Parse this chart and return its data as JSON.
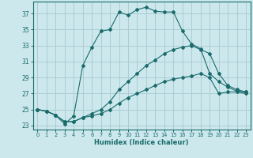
{
  "xlabel": "Humidex (Indice chaleur)",
  "bg_color": "#cce8ed",
  "grid_color": "#aacdd4",
  "line_color": "#1a6b6b",
  "xlim": [
    -0.5,
    23.5
  ],
  "ylim": [
    22.5,
    38.5
  ],
  "xticks": [
    0,
    1,
    2,
    3,
    4,
    5,
    6,
    7,
    8,
    9,
    10,
    11,
    12,
    13,
    14,
    15,
    16,
    17,
    18,
    19,
    20,
    21,
    22,
    23
  ],
  "yticks": [
    23,
    25,
    27,
    29,
    31,
    33,
    35,
    37
  ],
  "lines": [
    {
      "x": [
        0,
        1,
        2,
        3,
        4,
        5,
        6,
        7,
        8,
        9,
        10,
        11,
        12,
        13,
        14,
        15,
        16,
        17,
        18,
        19,
        20,
        21,
        22,
        23
      ],
      "y": [
        25.0,
        24.8,
        24.3,
        23.2,
        24.2,
        30.5,
        32.8,
        34.8,
        35.0,
        37.2,
        36.8,
        37.5,
        37.8,
        37.3,
        37.2,
        37.2,
        34.8,
        33.2,
        32.6,
        29.5,
        28.5,
        27.8,
        27.3,
        27.2
      ]
    },
    {
      "x": [
        0,
        1,
        2,
        3,
        4,
        5,
        6,
        7,
        8,
        9,
        10,
        11,
        12,
        13,
        14,
        15,
        16,
        17,
        18,
        19,
        20,
        21,
        22,
        23
      ],
      "y": [
        25.0,
        24.8,
        24.3,
        23.5,
        23.5,
        24.0,
        24.5,
        25.0,
        26.0,
        27.5,
        28.5,
        29.5,
        30.5,
        31.2,
        32.0,
        32.5,
        32.8,
        33.0,
        32.5,
        32.0,
        29.5,
        28.0,
        27.5,
        27.2
      ]
    },
    {
      "x": [
        0,
        1,
        2,
        3,
        4,
        5,
        6,
        7,
        8,
        9,
        10,
        11,
        12,
        13,
        14,
        15,
        16,
        17,
        18,
        19,
        20,
        21,
        22,
        23
      ],
      "y": [
        25.0,
        24.8,
        24.3,
        23.5,
        23.5,
        24.0,
        24.2,
        24.5,
        25.0,
        25.8,
        26.5,
        27.0,
        27.5,
        28.0,
        28.5,
        28.8,
        29.0,
        29.2,
        29.5,
        29.0,
        27.0,
        27.2,
        27.2,
        27.0
      ]
    }
  ]
}
